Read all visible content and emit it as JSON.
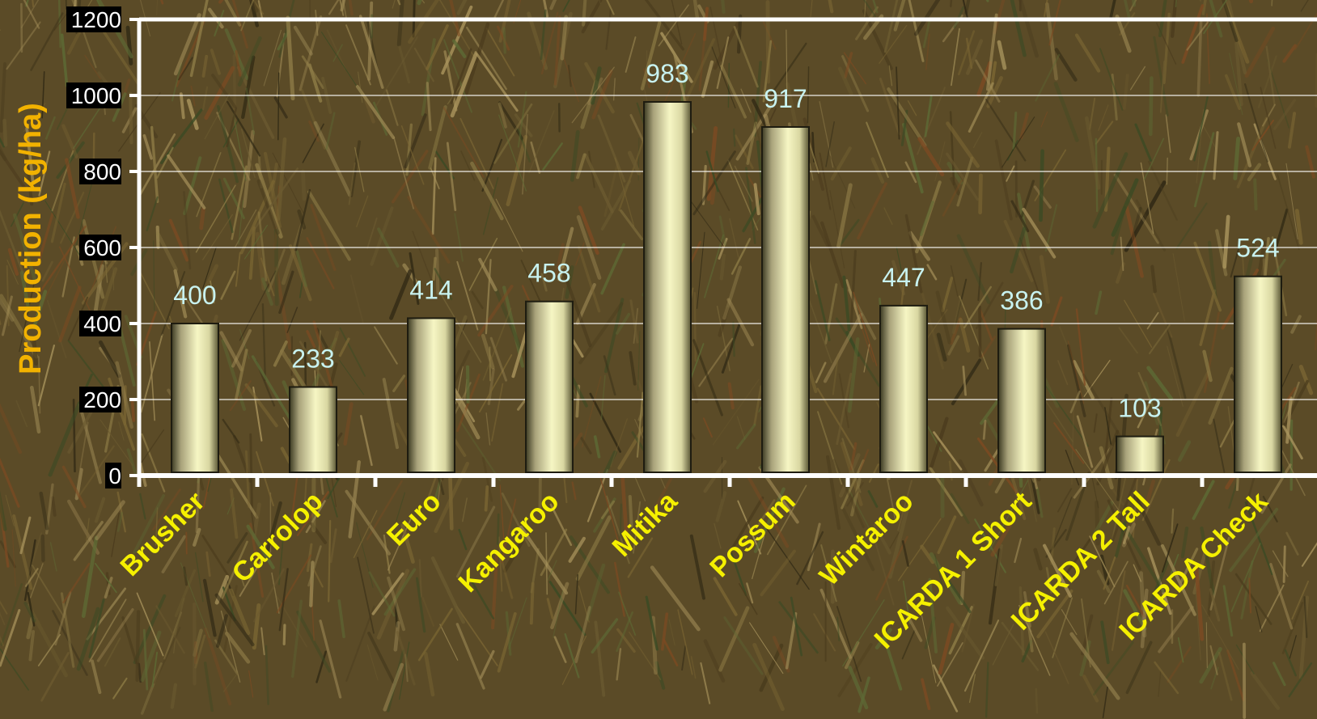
{
  "chart_data": {
    "type": "bar",
    "categories": [
      "Brusher",
      "Carrolop",
      "Euro",
      "Kangaroo",
      "Mitika",
      "Possum",
      "Wintaroo",
      "ICARDA 1 Short",
      "ICARDA 2 Tall",
      "ICARDA Check"
    ],
    "values": [
      400,
      233,
      414,
      458,
      983,
      917,
      447,
      386,
      103,
      524
    ],
    "value_labels": [
      "400",
      "233",
      "414",
      "458",
      "983",
      "917",
      "447",
      "386",
      "103",
      "524"
    ],
    "title": "",
    "xlabel": "",
    "ylabel": "Production  (kg/ha)",
    "ylim": [
      0,
      1200
    ],
    "yticks": [
      "0",
      "200",
      "400",
      "600",
      "800",
      "1000",
      "1200"
    ],
    "grid": true,
    "legend": "none",
    "background": "photo of grain field",
    "colors": {
      "bar_light": "#f6f6c4",
      "bar_dark": "#3c3a22",
      "axis": "#ffffff",
      "value_label": "#c8f2f0",
      "category_label": "#f5f000",
      "ylabel": "#f2b200",
      "tick_label_bg": "#000000",
      "tick_label_text": "#ffffff"
    }
  }
}
